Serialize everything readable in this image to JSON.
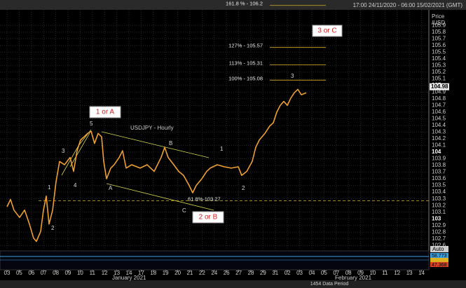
{
  "chart_data": {
    "type": "line",
    "header": "17:00 24/11/2020 - 06:00 15/02/2021 (GMT)",
    "title": "USDJPY - Hourly",
    "y_axis_label": [
      "Price",
      "/USD"
    ],
    "last_price": {
      "value": 104.98,
      "label": "104.98"
    },
    "months": [
      "January 2021",
      "February 2021"
    ],
    "data_period": "1454 Data Period",
    "auto": "Auto",
    "indicator_labels": [
      "58.773",
      "47.368"
    ],
    "boxes": [
      "1 or A",
      "2 or B",
      "3 or C"
    ],
    "wave_labels": [
      "5",
      "3",
      "4",
      "1",
      "2",
      "A",
      "B",
      "C",
      "1",
      "2",
      "3"
    ],
    "fib_levels": [
      {
        "value": 106.2,
        "label": "161.8 % - 106.2"
      },
      {
        "value": 105.57,
        "label": "127% - 105.57"
      },
      {
        "value": 105.31,
        "label": "113% - 105.31"
      },
      {
        "value": 105.08,
        "label": "100% - 105.08"
      }
    ],
    "retracement": {
      "value": 103.27,
      "label": "61.8%-103.27"
    },
    "series": [
      {
        "name": "USDJPY",
        "color": "#f0a030",
        "x": [
          0,
          0.29,
          0.57,
          1.03,
          1.44,
          1.84,
          2.18,
          2.41,
          2.76,
          2.99,
          3.22,
          3.45,
          3.74,
          4.02,
          4.31,
          4.71,
          5.17,
          5.46,
          5.75,
          6.03,
          6.32,
          6.61,
          6.9,
          7.18,
          7.47,
          7.76,
          7.93,
          8.16,
          8.51,
          8.79,
          9.2,
          9.48,
          9.77,
          10.23,
          10.92,
          11.49,
          12.07,
          12.64,
          12.93,
          13.22,
          13.68,
          14.08,
          14.48,
          14.94,
          15.23,
          15.52,
          15.98,
          16.38,
          16.67,
          17.24,
          17.82,
          18.39,
          18.97,
          19.25,
          19.66,
          20.11,
          20.4,
          20.69,
          21.15,
          21.55,
          21.84,
          22.13,
          22.41,
          22.7,
          22.99,
          23.28,
          23.56,
          23.85,
          24.14,
          24.54
        ],
        "values": [
          103.18,
          103.29,
          103.13,
          103.02,
          103.13,
          102.92,
          102.71,
          102.66,
          102.81,
          103.13,
          103.34,
          102.92,
          103.13,
          103.55,
          103.86,
          103.81,
          103.92,
          103.71,
          104.02,
          104.18,
          104.23,
          104.28,
          104.31,
          104.13,
          104.28,
          104.23,
          103.86,
          103.6,
          103.76,
          103.81,
          103.92,
          104.02,
          103.76,
          103.81,
          103.76,
          103.81,
          103.71,
          103.92,
          104.07,
          103.92,
          103.81,
          103.71,
          103.65,
          103.5,
          103.39,
          103.5,
          103.6,
          103.71,
          103.76,
          103.81,
          103.78,
          103.76,
          103.78,
          103.65,
          103.71,
          103.86,
          104.07,
          104.18,
          104.28,
          104.39,
          104.44,
          104.6,
          104.7,
          104.76,
          104.7,
          104.81,
          104.89,
          104.94,
          104.86,
          104.89
        ]
      }
    ],
    "xlim": [
      -0.575,
      34.6
    ],
    "ylim": [
      102.55,
      106.05
    ],
    "xticks": [
      {
        "value": 0,
        "label": "03"
      },
      {
        "value": 1,
        "label": "05"
      },
      {
        "value": 2,
        "label": "06"
      },
      {
        "value": 3,
        "label": "07"
      },
      {
        "value": 4,
        "label": "08"
      },
      {
        "value": 5,
        "label": "09"
      },
      {
        "value": 6,
        "label": "10"
      },
      {
        "value": 7,
        "label": "11"
      },
      {
        "value": 8,
        "label": "12"
      },
      {
        "value": 9,
        "label": "13"
      },
      {
        "value": 10,
        "label": "14"
      },
      {
        "value": 11,
        "label": "17"
      },
      {
        "value": 12,
        "label": "18"
      },
      {
        "value": 13,
        "label": "19"
      },
      {
        "value": 14,
        "label": "20"
      },
      {
        "value": 15,
        "label": "21"
      },
      {
        "value": 16,
        "label": "22"
      },
      {
        "value": 17,
        "label": "24"
      },
      {
        "value": 18,
        "label": "26"
      },
      {
        "value": 19,
        "label": "27"
      },
      {
        "value": 20,
        "label": "28"
      },
      {
        "value": 21,
        "label": "29"
      },
      {
        "value": 22,
        "label": "31"
      },
      {
        "value": 23,
        "label": "02"
      },
      {
        "value": 24,
        "label": "03"
      },
      {
        "value": 25,
        "label": "04"
      },
      {
        "value": 26,
        "label": "05"
      },
      {
        "value": 27,
        "label": "07"
      },
      {
        "value": 28,
        "label": "08"
      },
      {
        "value": 29,
        "label": "09"
      },
      {
        "value": 30,
        "label": "10"
      },
      {
        "value": 31,
        "label": "11"
      },
      {
        "value": 32,
        "label": "12"
      },
      {
        "value": 33,
        "label": "13"
      },
      {
        "value": 34,
        "label": "14"
      }
    ],
    "yticks": [
      102.6,
      102.7,
      102.8,
      102.9,
      103,
      103.1,
      103.2,
      103.3,
      103.4,
      103.5,
      103.6,
      103.7,
      103.8,
      103.9,
      104,
      104.1,
      104.2,
      104.3,
      104.4,
      104.5,
      104.6,
      104.7,
      104.8,
      104.9,
      105,
      105.1,
      105.2,
      105.3,
      105.4,
      105.5,
      105.6,
      105.7,
      105.8,
      105.9
    ],
    "grid": true
  }
}
